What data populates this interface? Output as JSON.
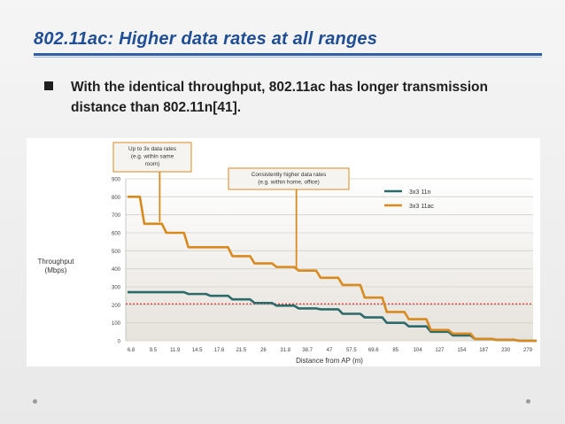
{
  "slide": {
    "title": "802.11ac: Higher data rates at all ranges",
    "bullet": "With the identical throughput, 802.11ac has longer transmission distance than 802.11n[41]."
  },
  "colors": {
    "title": "#1f4e96",
    "series_11n": "#2d6a6a",
    "series_11ac": "#d98a1e",
    "reference_line": "#d42020"
  },
  "chart_data": {
    "type": "line",
    "ylabel": "Throughput\n(Mbps)",
    "xlabel": "Distance from AP (m)",
    "ylim": [
      0,
      900
    ],
    "yticks": [
      0,
      100,
      200,
      300,
      400,
      500,
      600,
      700,
      800,
      900
    ],
    "x_ticks": [
      "6.8",
      "9.5",
      "11.9",
      "14.5",
      "17.6",
      "21.5",
      "26",
      "31.8",
      "38.7",
      "47",
      "57.5",
      "69.6",
      "85",
      "104",
      "127",
      "154",
      "187",
      "230",
      "279"
    ],
    "reference_line_value": 205,
    "legend": {
      "placement": "top-right",
      "entries": [
        "3x3 11n",
        "3x3 11ac"
      ]
    },
    "annotations": [
      {
        "text": "Up to 3x data rates\n(e.g. within same\nroom)",
        "points_to_x_index": 1.3
      },
      {
        "text": "Consistently higher data rates\n(e.g. within home, office)",
        "points_to_x_index": 7.5
      }
    ],
    "series": [
      {
        "name": "3x3 11n",
        "x": [
          0,
          1,
          2,
          3,
          4,
          5,
          6,
          7,
          8,
          9,
          10,
          11,
          12,
          13,
          14,
          15,
          16,
          17,
          18
        ],
        "values": [
          270,
          270,
          270,
          260,
          250,
          230,
          210,
          195,
          180,
          175,
          150,
          130,
          100,
          80,
          50,
          30,
          10,
          5,
          0
        ]
      },
      {
        "name": "3x3 11ac",
        "x": [
          0,
          1,
          2,
          3,
          4,
          5,
          6,
          7,
          8,
          9,
          10,
          11,
          12,
          13,
          14,
          15,
          16,
          17,
          18
        ],
        "values": [
          800,
          650,
          600,
          520,
          520,
          470,
          430,
          410,
          390,
          350,
          310,
          240,
          160,
          120,
          60,
          40,
          10,
          5,
          0
        ]
      }
    ]
  }
}
